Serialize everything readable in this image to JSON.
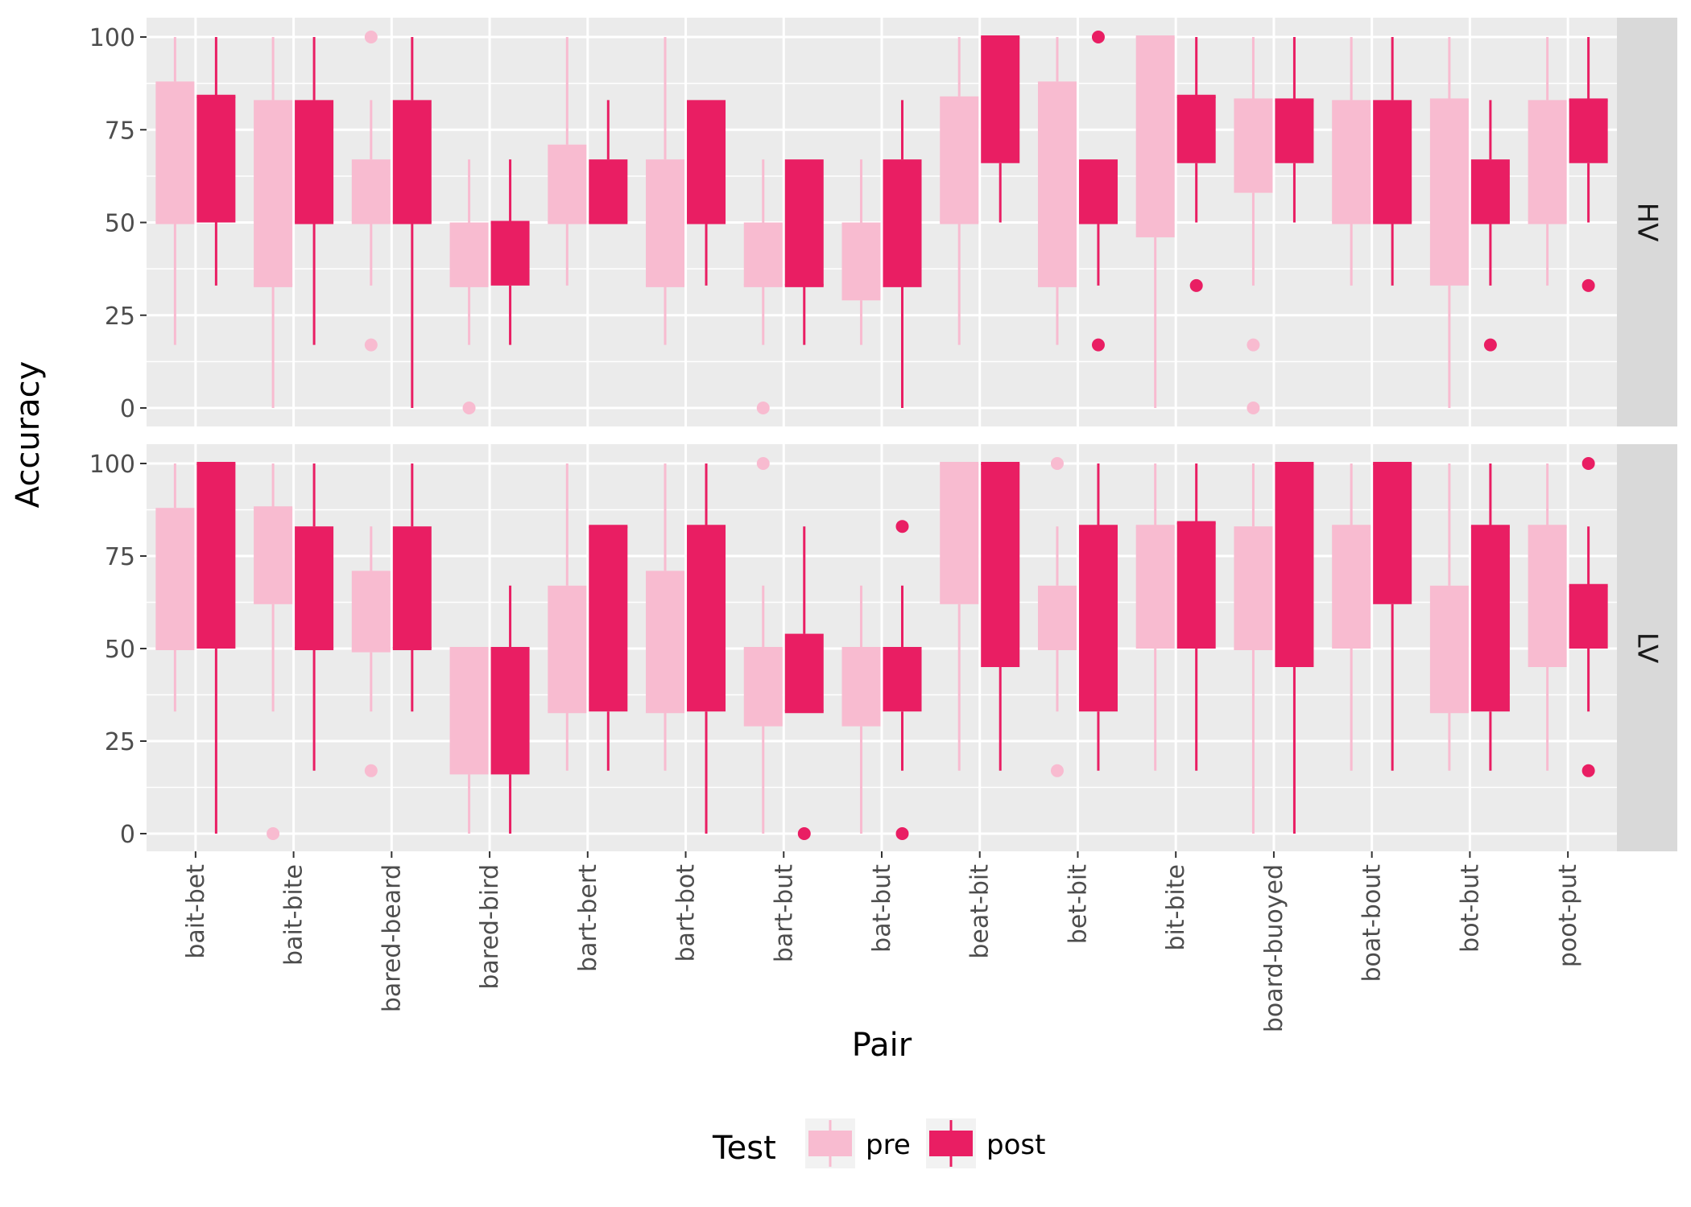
{
  "chart_data": {
    "type": "boxplot",
    "xlabel": "Pair",
    "ylabel": "Accuracy",
    "ylim": [
      0,
      100
    ],
    "yticks": [
      0,
      25,
      50,
      75,
      100
    ],
    "grid": true,
    "legend_placement": "bottom",
    "legend": {
      "title": "Test",
      "entries": [
        {
          "name": "pre",
          "color": "#f8bbd0"
        },
        {
          "name": "post",
          "color": "#e91e63"
        }
      ]
    },
    "categories": [
      "bait-bet",
      "bait-bite",
      "bared-beard",
      "bared-bird",
      "bart-bert",
      "bart-bot",
      "bart-but",
      "bat-but",
      "beat-bit",
      "bet-bit",
      "bit-bite",
      "board-buoyed",
      "boat-bout",
      "bot-but",
      "poot-put"
    ],
    "facets": [
      {
        "label": "HV",
        "pre": [
          {
            "min": 17,
            "q1": 50,
            "median": 50,
            "q3": 88,
            "max": 100,
            "outliers": []
          },
          {
            "min": 0,
            "q1": 33,
            "median": 33,
            "q3": 83,
            "max": 100,
            "outliers": []
          },
          {
            "min": 33,
            "q1": 50,
            "median": 50,
            "q3": 67,
            "max": 83,
            "outliers": [
              100,
              17
            ]
          },
          {
            "min": 17,
            "q1": 33,
            "median": 33,
            "q3": 50,
            "max": 67,
            "outliers": [
              0
            ]
          },
          {
            "min": 33,
            "q1": 50,
            "median": 50,
            "q3": 71,
            "max": 100,
            "outliers": []
          },
          {
            "min": 17,
            "q1": 33,
            "median": 33,
            "q3": 67,
            "max": 100,
            "outliers": []
          },
          {
            "min": 17,
            "q1": 33,
            "median": 33,
            "q3": 50,
            "max": 67,
            "outliers": [
              0
            ]
          },
          {
            "min": 17,
            "q1": 29,
            "median": 33,
            "q3": 50,
            "max": 67,
            "outliers": []
          },
          {
            "min": 17,
            "q1": 50,
            "median": 50,
            "q3": 84,
            "max": 100,
            "outliers": []
          },
          {
            "min": 17,
            "q1": 33,
            "median": 33,
            "q3": 88,
            "max": 100,
            "outliers": []
          },
          {
            "min": 0,
            "q1": 46,
            "median": 100,
            "q3": 100,
            "max": 100,
            "outliers": []
          },
          {
            "min": 33,
            "q1": 58,
            "median": 83,
            "q3": 83,
            "max": 100,
            "outliers": [
              17,
              0
            ]
          },
          {
            "min": 33,
            "q1": 50,
            "median": 50,
            "q3": 83,
            "max": 100,
            "outliers": []
          },
          {
            "min": 0,
            "q1": 33,
            "median": 83,
            "q3": 83,
            "max": 100,
            "outliers": []
          },
          {
            "min": 33,
            "q1": 50,
            "median": 50,
            "q3": 83,
            "max": 100,
            "outliers": []
          }
        ],
        "post": [
          {
            "min": 33,
            "q1": 50,
            "median": 84,
            "q3": 84,
            "max": 100,
            "outliers": []
          },
          {
            "min": 17,
            "q1": 50,
            "median": 50,
            "q3": 83,
            "max": 100,
            "outliers": []
          },
          {
            "min": 0,
            "q1": 50,
            "median": 50,
            "q3": 83,
            "max": 100,
            "outliers": []
          },
          {
            "min": 17,
            "q1": 33,
            "median": 50,
            "q3": 50,
            "max": 67,
            "outliers": []
          },
          {
            "min": 50,
            "q1": 50,
            "median": 50,
            "q3": 67,
            "max": 83,
            "outliers": []
          },
          {
            "min": 33,
            "q1": 50,
            "median": 50,
            "q3": 83,
            "max": 83,
            "outliers": []
          },
          {
            "min": 17,
            "q1": 33,
            "median": 33,
            "q3": 67,
            "max": 67,
            "outliers": []
          },
          {
            "min": 0,
            "q1": 33,
            "median": 33,
            "q3": 67,
            "max": 83,
            "outliers": []
          },
          {
            "min": 50,
            "q1": 66,
            "median": 100,
            "q3": 100,
            "max": 100,
            "outliers": []
          },
          {
            "min": 33,
            "q1": 50,
            "median": 50,
            "q3": 67,
            "max": 67,
            "outliers": [
              100,
              17
            ]
          },
          {
            "min": 50,
            "q1": 66,
            "median": 84,
            "q3": 84,
            "max": 100,
            "outliers": [
              33
            ]
          },
          {
            "min": 50,
            "q1": 66,
            "median": 83,
            "q3": 83,
            "max": 100,
            "outliers": []
          },
          {
            "min": 33,
            "q1": 50,
            "median": 50,
            "q3": 83,
            "max": 100,
            "outliers": []
          },
          {
            "min": 33,
            "q1": 50,
            "median": 50,
            "q3": 67,
            "max": 83,
            "outliers": [
              17
            ]
          },
          {
            "min": 50,
            "q1": 66,
            "median": 83,
            "q3": 83,
            "max": 100,
            "outliers": [
              33
            ]
          }
        ]
      },
      {
        "label": "LV",
        "pre": [
          {
            "min": 33,
            "q1": 50,
            "median": 50,
            "q3": 88,
            "max": 100,
            "outliers": []
          },
          {
            "min": 33,
            "q1": 62,
            "median": 88,
            "q3": 88,
            "max": 100,
            "outliers": [
              0
            ]
          },
          {
            "min": 33,
            "q1": 49,
            "median": 50,
            "q3": 71,
            "max": 83,
            "outliers": [
              17
            ]
          },
          {
            "min": 0,
            "q1": 16,
            "median": 50,
            "q3": 50,
            "max": 50,
            "outliers": []
          },
          {
            "min": 17,
            "q1": 33,
            "median": 33,
            "q3": 67,
            "max": 100,
            "outliers": []
          },
          {
            "min": 17,
            "q1": 33,
            "median": 33,
            "q3": 71,
            "max": 100,
            "outliers": []
          },
          {
            "min": 0,
            "q1": 29,
            "median": 50,
            "q3": 50,
            "max": 67,
            "outliers": [
              100
            ]
          },
          {
            "min": 0,
            "q1": 29,
            "median": 50,
            "q3": 50,
            "max": 67,
            "outliers": []
          },
          {
            "min": 17,
            "q1": 62,
            "median": 100,
            "q3": 100,
            "max": 100,
            "outliers": []
          },
          {
            "min": 33,
            "q1": 50,
            "median": 50,
            "q3": 67,
            "max": 83,
            "outliers": [
              100,
              17
            ]
          },
          {
            "min": 17,
            "q1": 50,
            "median": 83,
            "q3": 83,
            "max": 100,
            "outliers": []
          },
          {
            "min": 0,
            "q1": 50,
            "median": 50,
            "q3": 83,
            "max": 100,
            "outliers": []
          },
          {
            "min": 17,
            "q1": 50,
            "median": 83,
            "q3": 83,
            "max": 100,
            "outliers": []
          },
          {
            "min": 17,
            "q1": 33,
            "median": 33,
            "q3": 67,
            "max": 100,
            "outliers": []
          },
          {
            "min": 17,
            "q1": 45,
            "median": 83,
            "q3": 83,
            "max": 100,
            "outliers": []
          }
        ],
        "post": [
          {
            "min": 0,
            "q1": 50,
            "median": 100,
            "q3": 100,
            "max": 100,
            "outliers": []
          },
          {
            "min": 17,
            "q1": 50,
            "median": 50,
            "q3": 83,
            "max": 100,
            "outliers": []
          },
          {
            "min": 33,
            "q1": 50,
            "median": 50,
            "q3": 83,
            "max": 100,
            "outliers": []
          },
          {
            "min": 0,
            "q1": 16,
            "median": 50,
            "q3": 50,
            "max": 67,
            "outliers": []
          },
          {
            "min": 17,
            "q1": 33,
            "median": 83,
            "q3": 83,
            "max": 83,
            "outliers": []
          },
          {
            "min": 0,
            "q1": 33,
            "median": 83,
            "q3": 83,
            "max": 100,
            "outliers": []
          },
          {
            "min": 33,
            "q1": 33,
            "median": 33,
            "q3": 54,
            "max": 83,
            "outliers": [
              0
            ]
          },
          {
            "min": 17,
            "q1": 33,
            "median": 50,
            "q3": 50,
            "max": 67,
            "outliers": [
              83,
              0
            ]
          },
          {
            "min": 17,
            "q1": 45,
            "median": 100,
            "q3": 100,
            "max": 100,
            "outliers": []
          },
          {
            "min": 17,
            "q1": 33,
            "median": 83,
            "q3": 83,
            "max": 100,
            "outliers": []
          },
          {
            "min": 17,
            "q1": 50,
            "median": 84,
            "q3": 84,
            "max": 100,
            "outliers": []
          },
          {
            "min": 0,
            "q1": 45,
            "median": 100,
            "q3": 100,
            "max": 100,
            "outliers": []
          },
          {
            "min": 17,
            "q1": 62,
            "median": 100,
            "q3": 100,
            "max": 100,
            "outliers": []
          },
          {
            "min": 17,
            "q1": 33,
            "median": 83,
            "q3": 83,
            "max": 100,
            "outliers": []
          },
          {
            "min": 33,
            "q1": 50,
            "median": 67,
            "q3": 67,
            "max": 83,
            "outliers": [
              100,
              17
            ]
          }
        ]
      }
    ]
  }
}
